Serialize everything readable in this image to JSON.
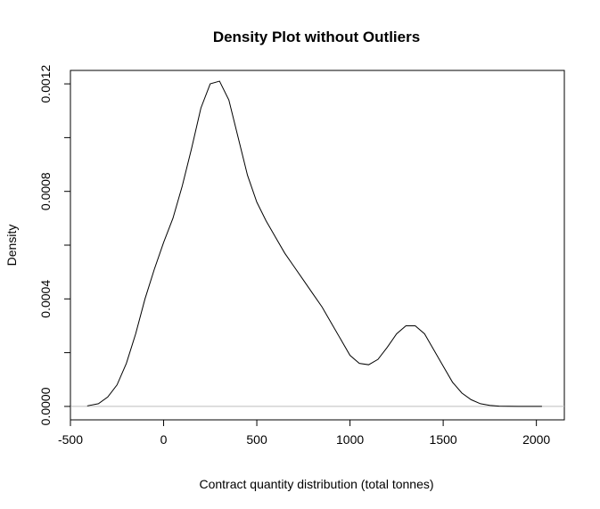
{
  "chart_data": {
    "type": "line",
    "title": "Density Plot without Outliers",
    "xlabel": "Contract quantity distribution (total tonnes)",
    "ylabel": "Density",
    "xlim": [
      -500,
      2150
    ],
    "ylim": [
      -5e-05,
      0.00125
    ],
    "x_ticks": [
      -500,
      0,
      500,
      1000,
      1500,
      2000
    ],
    "x_tick_labels": [
      "-500",
      "0",
      "500",
      "1000",
      "1500",
      "2000"
    ],
    "y_ticks": [
      0,
      0.0002,
      0.0004,
      0.0006,
      0.0008,
      0.001,
      0.0012
    ],
    "y_tick_labels": [
      "0.0000",
      "",
      "0.0004",
      "",
      "0.0008",
      "",
      "0.0012"
    ],
    "baseline": 0,
    "grid": false,
    "colors": {
      "line": "#000000",
      "baseline": "#bebebe",
      "frame": "#000000"
    },
    "series": [
      {
        "x": [
          -410,
          -350,
          -300,
          -250,
          -200,
          -150,
          -100,
          -50,
          0,
          50,
          100,
          150,
          200,
          250,
          300,
          350,
          400,
          450,
          500,
          550,
          600,
          650,
          700,
          750,
          800,
          850,
          900,
          950,
          1000,
          1050,
          1100,
          1150,
          1200,
          1250,
          1300,
          1350,
          1400,
          1450,
          1500,
          1550,
          1600,
          1650,
          1700,
          1750,
          1800,
          1850,
          1900,
          1950,
          2030
        ],
        "y": [
          2e-06,
          1e-05,
          3.5e-05,
          8e-05,
          0.00016,
          0.00027,
          0.0004,
          0.00051,
          0.00061,
          0.0007,
          0.00082,
          0.00096,
          0.00111,
          0.0012,
          0.00121,
          0.00114,
          0.001,
          0.00086,
          0.00076,
          0.00069,
          0.00063,
          0.00057,
          0.00052,
          0.00047,
          0.00042,
          0.00037,
          0.00031,
          0.00025,
          0.00019,
          0.00016,
          0.000155,
          0.000175,
          0.00022,
          0.00027,
          0.0003,
          0.0003,
          0.00027,
          0.00021,
          0.00015,
          9e-05,
          5e-05,
          2.5e-05,
          1e-05,
          4e-06,
          1e-06,
          5e-07,
          2e-07,
          1e-07,
          2e-08
        ]
      }
    ]
  }
}
